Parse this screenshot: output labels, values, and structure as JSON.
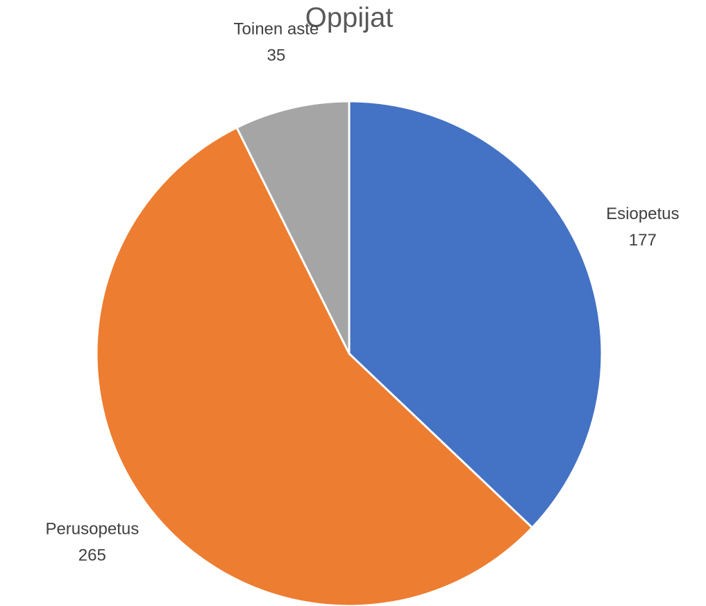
{
  "chart_data": {
    "type": "pie",
    "title": "Oppijat",
    "categories": [
      "Esiopetus",
      "Perusopetus",
      "Toinen aste"
    ],
    "values": [
      177,
      265,
      35
    ],
    "colors": [
      "#4472c4",
      "#ed7d31",
      "#a5a5a5"
    ]
  }
}
